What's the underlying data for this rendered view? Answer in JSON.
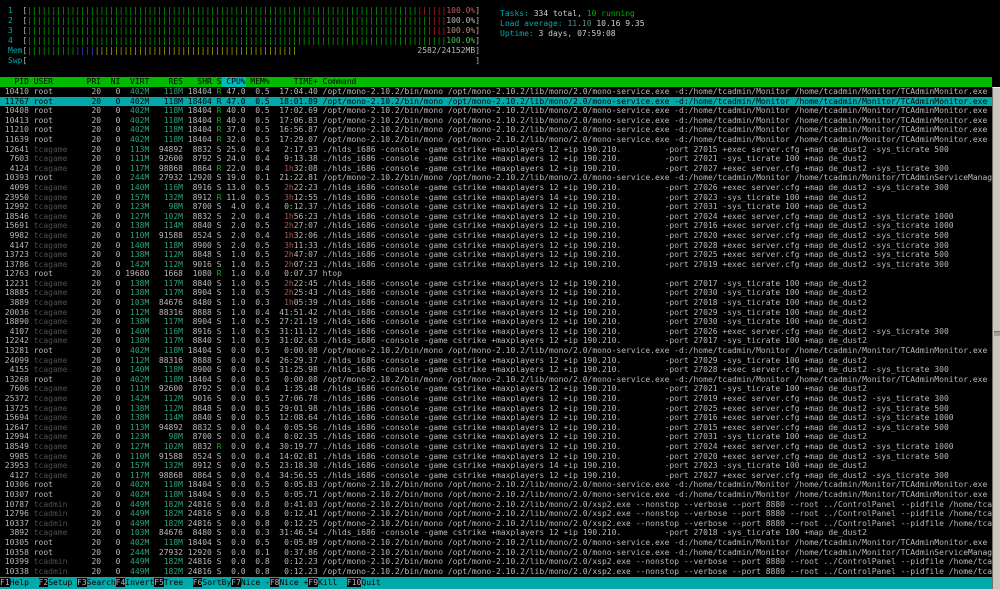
{
  "meters": {
    "cpus": [
      {
        "label": "1",
        "percent": "100.0%",
        "green": 81,
        "red": 6,
        "pct_color": "#c05b5b"
      },
      {
        "label": "2",
        "percent": "100.0%",
        "green": 84,
        "red": 3,
        "pct_color": "#b9b9b9"
      },
      {
        "label": "3",
        "percent": "100.0%",
        "green": 83,
        "red": 4,
        "pct_color": "#bd8a7a"
      },
      {
        "label": "4",
        "percent": "100.0%",
        "green": 87,
        "red": 0,
        "pct_color": "#4fc04f"
      }
    ],
    "mem": {
      "label": "Mem",
      "green": 10,
      "blue": 4,
      "yellow": 42,
      "value": "2582/24152MB"
    },
    "swp": {
      "label": "Swp",
      "value": "0/7665MB"
    }
  },
  "sysinfo": {
    "tasks_label": "Tasks: ",
    "tasks_total": "334 total, ",
    "tasks_running": "10 running",
    "load_label": "Load average: ",
    "load_first": "11.10 ",
    "load_rest": "10.16 9.35",
    "uptime_label": "Uptime: ",
    "uptime_value": "3 days, 07:59:08"
  },
  "table": {
    "columns": [
      "PID",
      "USER",
      "PRI",
      "NI",
      "VIRT",
      "RES",
      "SHR",
      "S",
      "CPU%",
      "MEM%",
      "TIME+",
      "Command"
    ],
    "sort_column": "CPU%",
    "selected_pid": "11767",
    "rows": [
      [
        "10410",
        "root",
        "20",
        "0",
        "402M",
        "118M",
        "18404",
        "R",
        "47.0",
        "0.5",
        "17:04.40",
        "/opt/mono-2.10.2/bin/mono /opt/mono-2.10.2/lib/mono/2.0/mono-service.exe -d:/home/tcadmin/Monitor /home/tcadmin/Monitor/TCAdminMonitor.exe"
      ],
      [
        "11767",
        "root",
        "20",
        "0",
        "402M",
        "118M",
        "18404",
        "R",
        "47.0",
        "0.5",
        "18:01.89",
        "/opt/mono-2.10.2/bin/mono /opt/mono-2.10.2/lib/mono/2.0/mono-service.exe -d:/home/tcadmin/Monitor /home/tcadmin/Monitor/TCAdminMonitor.exe"
      ],
      [
        "10408",
        "root",
        "20",
        "0",
        "402M",
        "118M",
        "18404",
        "R",
        "40.0",
        "0.5",
        "17:02.69",
        "/opt/mono-2.10.2/bin/mono /opt/mono-2.10.2/lib/mono/2.0/mono-service.exe -d:/home/tcadmin/Monitor /home/tcadmin/Monitor/TCAdminMonitor.exe"
      ],
      [
        "10413",
        "root",
        "20",
        "0",
        "402M",
        "118M",
        "18404",
        "R",
        "40.0",
        "0.5",
        "17:06.83",
        "/opt/mono-2.10.2/bin/mono /opt/mono-2.10.2/lib/mono/2.0/mono-service.exe -d:/home/tcadmin/Monitor /home/tcadmin/Monitor/TCAdminMonitor.exe"
      ],
      [
        "11210",
        "root",
        "20",
        "0",
        "402M",
        "118M",
        "18404",
        "R",
        "37.0",
        "0.5",
        "16:56.87",
        "/opt/mono-2.10.2/bin/mono /opt/mono-2.10.2/lib/mono/2.0/mono-service.exe -d:/home/tcadmin/Monitor /home/tcadmin/Monitor/TCAdminMonitor.exe"
      ],
      [
        "11639",
        "root",
        "20",
        "0",
        "402M",
        "118M",
        "18404",
        "R",
        "32.0",
        "0.5",
        "17:29.07",
        "/opt/mono-2.10.2/bin/mono /opt/mono-2.10.2/lib/mono/2.0/mono-service.exe -d:/home/tcadmin/Monitor /home/tcadmin/Monitor/TCAdminMonitor.exe"
      ],
      [
        "12641",
        "tcagame",
        "20",
        "0",
        "113M",
        "94892",
        "8832",
        "S",
        "25.0",
        "0.4",
        "2:17.93",
        "./hlds_i686 -console -game cstrike +maxplayers 12 +ip 190.210.         -port 27015 +exec server.cfg +map de_dust2 -sys_ticrate 500"
      ],
      [
        "7603",
        "tcagame",
        "20",
        "0",
        "111M",
        "92600",
        "8792",
        "S",
        "24.0",
        "0.4",
        "9:13.38",
        "./hlds_i686 -console -game cstrike +maxplayers 12 +ip 190.210.         -port 27021 -sys_ticrate 100 +map de_dust2"
      ],
      [
        "4124",
        "tcagame",
        "20",
        "0",
        "117M",
        "98868",
        "8864",
        "R",
        "22.0",
        "0.4",
        "1h32:08",
        "./hlds_i686 -console -game cstrike +maxplayers 12 +ip 190.210.         -port 27027 +exec server.cfg +map de_dust2 -sys_ticrate 300"
      ],
      [
        "10393",
        "root",
        "20",
        "0",
        "244M",
        "27932",
        "12920",
        "S",
        "19.0",
        "0.1",
        "21:22.81",
        "/opt/mono-2.10.2/bin/mono /opt/mono-2.10.2/lib/mono/2.0/mono-service.exe -d:/home/tcadmin/Monitor /home/tcadmin/Monitor/TCAdminServiceManager.exe"
      ],
      [
        "4099",
        "tcagame",
        "20",
        "0",
        "140M",
        "116M",
        "8916",
        "S",
        "13.0",
        "0.5",
        "2h22:23",
        "./hlds_i686 -console -game cstrike +maxplayers 12 +ip 190.210.         -port 27026 +exec server.cfg +map de_dust2 -sys_ticrate 300"
      ],
      [
        "23950",
        "tcagame",
        "20",
        "0",
        "157M",
        "132M",
        "8912",
        "R",
        "11.0",
        "0.5",
        "3h12:55",
        "./hlds_i686 -console -game cstrike +maxplayers 14 +ip 190.210.         -port 27023 -sys_ticrate 100 +map de_dust2"
      ],
      [
        "12992",
        "tcagame",
        "20",
        "0",
        "123M",
        "98M",
        "8700",
        "S",
        "4.0",
        "0.4",
        "0:12.37",
        "./hlds_i686 -console -game cstrike +maxplayers 12 +ip 190.210.         -port 27031 -sys_ticrate 100 +map de_dust2"
      ],
      [
        "18546",
        "tcagame",
        "20",
        "0",
        "127M",
        "102M",
        "8832",
        "S",
        "2.0",
        "0.4",
        "1h56:23",
        "./hlds_i686 -console -game cstrike +maxplayers 12 +ip 190.210.         -port 27024 +exec server.cfg +map de_dust2 -sys_ticrate 1000"
      ],
      [
        "15691",
        "tcagame",
        "20",
        "0",
        "138M",
        "114M",
        "8840",
        "S",
        "2.0",
        "0.5",
        "2h27:07",
        "./hlds_i686 -console -game cstrike +maxplayers 12 +ip 190.210.         -port 27016 +exec server.cfg +map de_dust2 -sys_ticrate 1000"
      ],
      [
        "9982",
        "tcagame",
        "20",
        "0",
        "110M",
        "91588",
        "8524",
        "S",
        "2.0",
        "0.4",
        "1h32:06",
        "./hlds_i686 -console -game cstrike +maxplayers 12 +ip 190.210.         -port 27020 +exec server.cfg +map de_dust2 -sys_ticrate 500"
      ],
      [
        "4147",
        "tcagame",
        "20",
        "0",
        "140M",
        "118M",
        "8900",
        "S",
        "2.0",
        "0.5",
        "3h11:33",
        "./hlds_i686 -console -game cstrike +maxplayers 12 +ip 190.210.         -port 27028 +exec server.cfg +map de_dust2 -sys_ticrate 300"
      ],
      [
        "13723",
        "tcagame",
        "20",
        "0",
        "138M",
        "112M",
        "8848",
        "S",
        "1.0",
        "0.5",
        "2h47:07",
        "./hlds_i686 -console -game cstrike +maxplayers 12 +ip 190.210.         -port 27025 +exec server.cfg +map de_dust2 -sys_ticrate 500"
      ],
      [
        "13786",
        "tcagame",
        "20",
        "0",
        "142M",
        "112M",
        "9016",
        "S",
        "1.0",
        "0.5",
        "2h07:23",
        "./hlds_i686 -console -game cstrike +maxplayers 12 +ip 190.210.         -port 27019 +exec server.cfg +map de_dust2 -sys_ticrate 300"
      ],
      [
        "12763",
        "root",
        "20",
        "0",
        "19680",
        "1668",
        "1080",
        "R",
        "1.0",
        "0.0",
        "0:07.37",
        "htop"
      ],
      [
        "12231",
        "tcagame",
        "20",
        "0",
        "138M",
        "117M",
        "8840",
        "S",
        "1.0",
        "0.5",
        "2h22:45",
        "./hlds_i686 -console -game cstrike +maxplayers 12 +ip 190.210.         -port 27017 -sys_ticrate 100 +map de_dust2"
      ],
      [
        "18885",
        "tcagame",
        "20",
        "0",
        "138M",
        "117M",
        "8904",
        "S",
        "1.0",
        "0.5",
        "2h25:43",
        "./hlds_i686 -console -game cstrike +maxplayers 12 +ip 190.210.         -port 27030 -sys_ticrate 100 +map de_dust2"
      ],
      [
        "3889",
        "tcagame",
        "20",
        "0",
        "103M",
        "84676",
        "8480",
        "S",
        "1.0",
        "0.3",
        "1h05:39",
        "./hlds_i686 -console -game cstrike +maxplayers 12 +ip 190.210.         -port 27018 -sys_ticrate 100 +map de_dust2"
      ],
      [
        "20036",
        "tcagame",
        "20",
        "0",
        "112M",
        "88316",
        "8888",
        "S",
        "1.0",
        "0.4",
        "41:51.42",
        "./hlds_i686 -console -game cstrike +maxplayers 12 +ip 190.210.         -port 27029 -sys_ticrate 100 +map de_dust2"
      ],
      [
        "18890",
        "tcagame",
        "20",
        "0",
        "138M",
        "117M",
        "8904",
        "S",
        "1.0",
        "0.5",
        "27:21.19",
        "./hlds_i686 -console -game cstrike +maxplayers 12 +ip 190.210.         -port 27030 -sys_ticrate 100 +map de_dust2"
      ],
      [
        "4107",
        "tcagame",
        "20",
        "0",
        "140M",
        "116M",
        "8916",
        "S",
        "1.0",
        "0.5",
        "31:11.12",
        "./hlds_i686 -console -game cstrike +maxplayers 12 +ip 190.210.         -port 27026 +exec server.cfg +map de_dust2 -sys_ticrate 300"
      ],
      [
        "12242",
        "tcagame",
        "20",
        "0",
        "138M",
        "117M",
        "8840",
        "S",
        "1.0",
        "0.5",
        "31:02.63",
        "./hlds_i686 -console -game cstrike +maxplayers 12 +ip 190.210.         -port 27017 -sys_ticrate 100 +map de_dust2"
      ],
      [
        "13281",
        "root",
        "20",
        "0",
        "402M",
        "118M",
        "18404",
        "S",
        "0.0",
        "0.5",
        "0:00.08",
        "/opt/mono-2.10.2/bin/mono /opt/mono-2.10.2/lib/mono/2.0/mono-service.exe -d:/home/tcadmin/Monitor /home/tcadmin/Monitor/TCAdminMonitor.exe"
      ],
      [
        "24099",
        "tcagame",
        "20",
        "0",
        "112M",
        "88316",
        "8888",
        "S",
        "0.0",
        "0.4",
        "26:29.37",
        "./hlds_i686 -console -game cstrike +maxplayers 12 +ip 190.210.         -port 27029 -sys_ticrate 100 +map de_dust2"
      ],
      [
        "4155",
        "tcagame",
        "20",
        "0",
        "140M",
        "118M",
        "8900",
        "S",
        "0.0",
        "0.5",
        "31:25.98",
        "./hlds_i686 -console -game cstrike +maxplayers 12 +ip 190.210.         -port 27028 +exec server.cfg +map de_dust2 -sys_ticrate 300"
      ],
      [
        "13268",
        "root",
        "20",
        "0",
        "402M",
        "118M",
        "18404",
        "S",
        "0.0",
        "0.5",
        "0:00.08",
        "/opt/mono-2.10.2/bin/mono /opt/mono-2.10.2/lib/mono/2.0/mono-service.exe -d:/home/tcadmin/Monitor /home/tcadmin/Monitor/TCAdminMonitor.exe"
      ],
      [
        "7606",
        "tcagame",
        "20",
        "0",
        "111M",
        "92600",
        "8792",
        "S",
        "0.0",
        "0.4",
        "1:35.48",
        "./hlds_i686 -console -game cstrike +maxplayers 12 +ip 190.210.         -port 27021 -sys_ticrate 100 +map de_dust2"
      ],
      [
        "25372",
        "tcagame",
        "20",
        "0",
        "142M",
        "112M",
        "9016",
        "S",
        "0.0",
        "0.5",
        "27:06.78",
        "./hlds_i686 -console -game cstrike +maxplayers 12 +ip 190.210.         -port 27019 +exec server.cfg +map de_dust2 -sys_ticrate 300"
      ],
      [
        "13725",
        "tcagame",
        "20",
        "0",
        "138M",
        "112M",
        "8848",
        "S",
        "0.0",
        "0.5",
        "29:01.98",
        "./hlds_i686 -console -game cstrike +maxplayers 12 +ip 190.210.         -port 27025 +exec server.cfg +map de_dust2 -sys_ticrate 500"
      ],
      [
        "15694",
        "tcagame",
        "20",
        "0",
        "138M",
        "114M",
        "8840",
        "S",
        "0.0",
        "0.5",
        "12:08.64",
        "./hlds_i686 -console -game cstrike +maxplayers 12 +ip 190.210.         -port 27016 +exec server.cfg +map de_dust2 -sys_ticrate 1000"
      ],
      [
        "12647",
        "tcagame",
        "20",
        "0",
        "113M",
        "94892",
        "8832",
        "S",
        "0.0",
        "0.4",
        "0:05.56",
        "./hlds_i686 -console -game cstrike +maxplayers 12 +ip 190.210.         -port 27015 +exec server.cfg +map de_dust2 -sys_ticrate 500"
      ],
      [
        "12994",
        "tcagame",
        "20",
        "0",
        "123M",
        "98M",
        "8700",
        "S",
        "0.0",
        "0.4",
        "0:02.35",
        "./hlds_i686 -console -game cstrike +maxplayers 12 +ip 190.210.         -port 27031 -sys_ticrate 100 +map de_dust2"
      ],
      [
        "18549",
        "tcagame",
        "20",
        "0",
        "127M",
        "102M",
        "8832",
        "R",
        "0.0",
        "0.4",
        "30:19.77",
        "./hlds_i686 -console -game cstrike +maxplayers 12 +ip 190.210.         -port 27024 +exec server.cfg +map de_dust2 -sys_ticrate 1000"
      ],
      [
        "9985",
        "tcagame",
        "20",
        "0",
        "110M",
        "91588",
        "8524",
        "S",
        "0.0",
        "0.4",
        "14:02.81",
        "./hlds_i686 -console -game cstrike +maxplayers 12 +ip 190.210.         -port 27020 +exec server.cfg +map de_dust2 -sys_ticrate 500"
      ],
      [
        "23953",
        "tcagame",
        "20",
        "0",
        "157M",
        "132M",
        "8912",
        "S",
        "0.0",
        "0.5",
        "23:18.30",
        "./hlds_i686 -console -game cstrike +maxplayers 14 +ip 190.210.         -port 27023 -sys_ticrate 100 +map de_dust2"
      ],
      [
        "4127",
        "tcagame",
        "20",
        "0",
        "117M",
        "98868",
        "8864",
        "S",
        "0.0",
        "0.4",
        "34:56.55",
        "./hlds_i686 -console -game cstrike +maxplayers 12 +ip 190.210.         -port 27027 +exec server.cfg +map de_dust2 -sys_ticrate 300"
      ],
      [
        "10306",
        "root",
        "20",
        "0",
        "402M",
        "118M",
        "18404",
        "S",
        "0.0",
        "0.5",
        "0:05.83",
        "/opt/mono-2.10.2/bin/mono /opt/mono-2.10.2/lib/mono/2.0/mono-service.exe -d:/home/tcadmin/Monitor /home/tcadmin/Monitor/TCAdminMonitor.exe"
      ],
      [
        "10307",
        "root",
        "20",
        "0",
        "402M",
        "118M",
        "18404",
        "S",
        "0.0",
        "0.5",
        "0:05.71",
        "/opt/mono-2.10.2/bin/mono /opt/mono-2.10.2/lib/mono/2.0/mono-service.exe -d:/home/tcadmin/Monitor /home/tcadmin/Monitor/TCAdminMonitor.exe"
      ],
      [
        "10787",
        "tcadmin",
        "20",
        "0",
        "449M",
        "182M",
        "24816",
        "S",
        "0.0",
        "0.8",
        "0:41.03",
        "/opt/mono-2.10.2/bin/mono /opt/mono-2.10.2/lib/mono/2.0/xsp2.exe --nonstop --verbose --port 8880 --root ../ControlPanel --pidfile /home/tcadmin/M"
      ],
      [
        "12796",
        "tcadmin",
        "20",
        "0",
        "449M",
        "182M",
        "24816",
        "S",
        "0.0",
        "0.8",
        "0:12.41",
        "/opt/mono-2.10.2/bin/mono /opt/mono-2.10.2/lib/mono/2.0/xsp2.exe --nonstop --verbose --port 8880 --root ../ControlPanel --pidfile /home/tcadmin/M"
      ],
      [
        "10337",
        "tcadmin",
        "20",
        "0",
        "449M",
        "182M",
        "24816",
        "S",
        "0.0",
        "0.8",
        "0:12.25",
        "/opt/mono-2.10.2/bin/mono /opt/mono-2.10.2/lib/mono/2.0/xsp2.exe --nonstop --verbose --port 8880 --root ../ControlPanel --pidfile /home/tcadmin/M"
      ],
      [
        "3892",
        "tcagame",
        "20",
        "0",
        "103M",
        "84676",
        "8480",
        "S",
        "0.0",
        "0.3",
        "31:46.54",
        "./hlds_i686 -console -game cstrike +maxplayers 12 +ip 190.210.         -port 27018 -sys_ticrate 100 +map de_dust2"
      ],
      [
        "10305",
        "root",
        "20",
        "0",
        "402M",
        "118M",
        "18404",
        "S",
        "0.0",
        "0.5",
        "0:05.89",
        "/opt/mono-2.10.2/bin/mono /opt/mono-2.10.2/lib/mono/2.0/mono-service.exe -d:/home/tcadmin/Monitor /home/tcadmin/Monitor/TCAdminMonitor.exe"
      ],
      [
        "10358",
        "root",
        "20",
        "0",
        "244M",
        "27932",
        "12920",
        "S",
        "0.0",
        "0.1",
        "0:37.86",
        "/opt/mono-2.10.2/bin/mono /opt/mono-2.10.2/lib/mono/2.0/mono-service.exe -d:/home/tcadmin/Monitor /home/tcadmin/Monitor/TCAdminServiceManager.exe"
      ],
      [
        "10399",
        "tcadmin",
        "20",
        "0",
        "449M",
        "182M",
        "24816",
        "S",
        "0.0",
        "0.8",
        "0:12.23",
        "/opt/mono-2.10.2/bin/mono /opt/mono-2.10.2/lib/mono/2.0/xsp2.exe --nonstop --verbose --port 8880 --root ../ControlPanel --pidfile /home/tcadmin/M"
      ],
      [
        "10338",
        "tcadmin",
        "20",
        "0",
        "449M",
        "182M",
        "24816",
        "S",
        "0.0",
        "0.8",
        "0:12.23",
        "/opt/mono-2.10.2/bin/mono /opt/mono-2.10.2/lib/mono/2.0/xsp2.exe --nonstop --verbose --port 8880 --root ../ControlPanel --pidfile /home/tcadmin/M"
      ]
    ]
  },
  "fkeys": [
    {
      "key": "F1",
      "label": "Help"
    },
    {
      "key": "F2",
      "label": "Setup"
    },
    {
      "key": "F3",
      "label": "Search"
    },
    {
      "key": "F4",
      "label": "Invert"
    },
    {
      "key": "F5",
      "label": "Tree"
    },
    {
      "key": "F6",
      "label": "SortBy"
    },
    {
      "key": "F7",
      "label": "Nice -"
    },
    {
      "key": "F8",
      "label": "Nice +"
    },
    {
      "key": "F9",
      "label": "Kill"
    },
    {
      "key": "F10",
      "label": "Quit"
    }
  ],
  "colors": {
    "header_bg": "#00bb00",
    "sort_header_bg": "#00bbbb",
    "selected_bg": "#00aaaa",
    "bar_green": "#00b000",
    "bar_red": "#cc2222",
    "bar_blue": "#4a4acc",
    "bar_yellow": "#b8b800",
    "label_cyan": "#00aaaa",
    "dim_user": "#4e4e4e",
    "mem_value_green": "#2aa37f",
    "running_state": "#00c000",
    "default_text": "#b9b9b9"
  }
}
